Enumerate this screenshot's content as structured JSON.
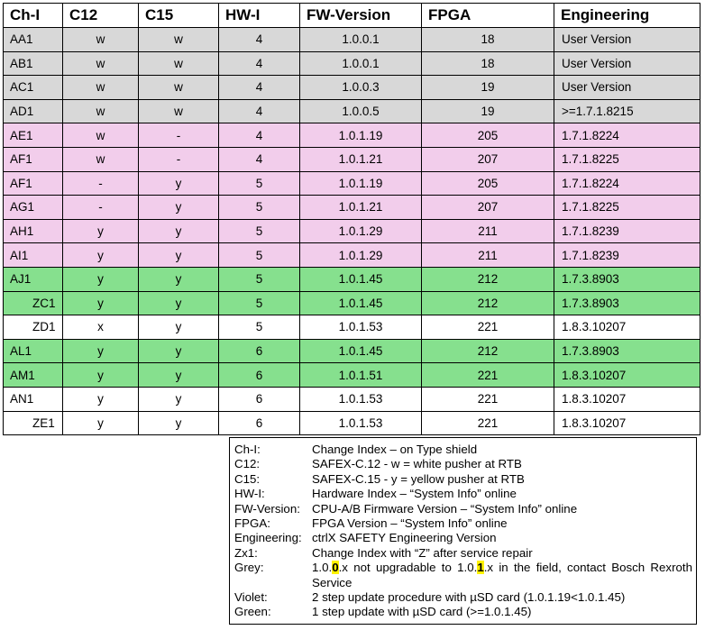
{
  "table": {
    "headers": [
      "Ch-I",
      "C12",
      "C15",
      "HW-I",
      "FW-Version",
      "FPGA",
      "Engineering"
    ],
    "rows": [
      {
        "chi": "AA1",
        "c12": "w",
        "c15": "w",
        "hwi": "4",
        "fw": "1.0.0.1",
        "fpga": "18",
        "eng": "User Version",
        "color": "grey"
      },
      {
        "chi": "AB1",
        "c12": "w",
        "c15": "w",
        "hwi": "4",
        "fw": "1.0.0.1",
        "fpga": "18",
        "eng": "User Version",
        "color": "grey"
      },
      {
        "chi": "AC1",
        "c12": "w",
        "c15": "w",
        "hwi": "4",
        "fw": "1.0.0.3",
        "fpga": "19",
        "eng": "User Version",
        "color": "grey"
      },
      {
        "chi": "AD1",
        "c12": "w",
        "c15": "w",
        "hwi": "4",
        "fw": "1.0.0.5",
        "fpga": "19",
        "eng": ">=1.7.1.8215",
        "color": "grey"
      },
      {
        "chi": "AE1",
        "c12": "w",
        "c15": "-",
        "hwi": "4",
        "fw": "1.0.1.19",
        "fpga": "205",
        "eng": "1.7.1.8224",
        "color": "violet"
      },
      {
        "chi": "AF1",
        "c12": "w",
        "c15": "-",
        "hwi": "4",
        "fw": "1.0.1.21",
        "fpga": "207",
        "eng": "1.7.1.8225",
        "color": "violet"
      },
      {
        "chi": "AF1",
        "c12": "-",
        "c15": "y",
        "hwi": "5",
        "fw": "1.0.1.19",
        "fpga": "205",
        "eng": "1.7.1.8224",
        "color": "violet"
      },
      {
        "chi": "AG1",
        "c12": "-",
        "c15": "y",
        "hwi": "5",
        "fw": "1.0.1.21",
        "fpga": "207",
        "eng": "1.7.1.8225",
        "color": "violet"
      },
      {
        "chi": "AH1",
        "c12": "y",
        "c15": "y",
        "hwi": "5",
        "fw": "1.0.1.29",
        "fpga": "211",
        "eng": "1.7.1.8239",
        "color": "violet"
      },
      {
        "chi": "AI1",
        "c12": "y",
        "c15": "y",
        "hwi": "5",
        "fw": "1.0.1.29",
        "fpga": "211",
        "eng": "1.7.1.8239",
        "color": "violet"
      },
      {
        "chi": "AJ1",
        "c12": "y",
        "c15": "y",
        "hwi": "5",
        "fw": "1.0.1.45",
        "fpga": "212",
        "eng": "1.7.3.8903",
        "color": "green"
      },
      {
        "chi": "ZC1",
        "c12": "y",
        "c15": "y",
        "hwi": "5",
        "fw": "1.0.1.45",
        "fpga": "212",
        "eng": "1.7.3.8903",
        "color": "green",
        "indent": true
      },
      {
        "chi": "ZD1",
        "c12": "x",
        "c15": "y",
        "hwi": "5",
        "fw": "1.0.1.53",
        "fpga": "221",
        "eng": "1.8.3.10207",
        "color": "white",
        "indent": true
      },
      {
        "chi": "AL1",
        "c12": "y",
        "c15": "y",
        "hwi": "6",
        "fw": "1.0.1.45",
        "fpga": "212",
        "eng": "1.7.3.8903",
        "color": "green"
      },
      {
        "chi": "AM1",
        "c12": "y",
        "c15": "y",
        "hwi": "6",
        "fw": "1.0.1.51",
        "fpga": "221",
        "eng": "1.8.3.10207",
        "color": "green"
      },
      {
        "chi": "AN1",
        "c12": "y",
        "c15": "y",
        "hwi": "6",
        "fw": "1.0.1.53",
        "fpga": "221",
        "eng": "1.8.3.10207",
        "color": "white"
      },
      {
        "chi": "ZE1",
        "c12": "y",
        "c15": "y",
        "hwi": "6",
        "fw": "1.0.1.53",
        "fpga": "221",
        "eng": "1.8.3.10207",
        "color": "white",
        "indent": true
      }
    ]
  },
  "legend": {
    "items": [
      {
        "key": "Ch-I:",
        "text": "Change Index – on Type shield"
      },
      {
        "key": "C12:",
        "text": "SAFEX-C.12  -  w = white pusher at RTB"
      },
      {
        "key": "C15:",
        "text": "SAFEX-C.15  -  y = yellow pusher at RTB"
      },
      {
        "key": "HW-I:",
        "text": "Hardware Index – “System Info” online"
      },
      {
        "key": "FW-Version:",
        "text": "CPU-A/B Firmware Version – “System Info” online"
      },
      {
        "key": "FPGA:",
        "text": "FPGA Version – “System Info” online"
      },
      {
        "key": "Engineering:",
        "text": "ctrlX SAFETY Engineering Version"
      },
      {
        "key": "Zx1:",
        "text": "Change Index with “Z” after service repair"
      }
    ],
    "grey": {
      "key": "Grey:",
      "t1": "1.0.",
      "h1": "0",
      "t2": ".x not upgradable to 1.0.",
      "h2": "1",
      "t3": ".x in the field, contact Bosch Rexroth Service"
    },
    "violet": {
      "key": "Violet:",
      "text": "2 step update procedure with µSD card (1.0.1.19<1.0.1.45)"
    },
    "green": {
      "key": "Green:",
      "text": "1 step update with µSD card (>=1.0.1.45)"
    }
  },
  "colors": {
    "grey": "#d8d8d8",
    "violet": "#f2cdeb",
    "green": "#86e08e",
    "highlight": "#fff200"
  }
}
